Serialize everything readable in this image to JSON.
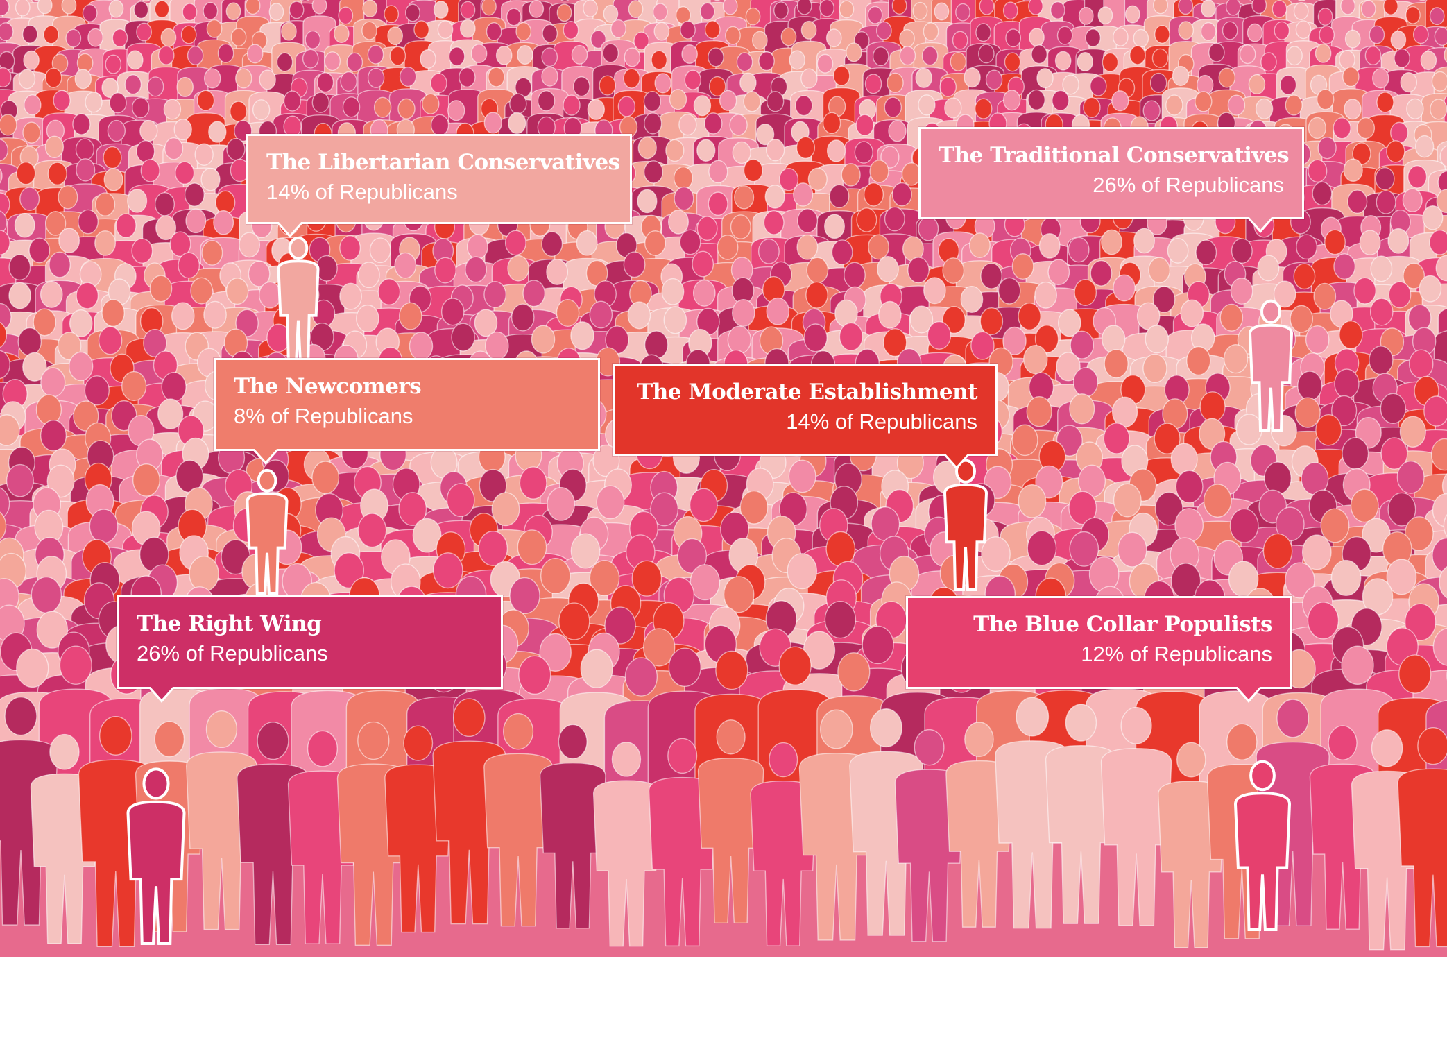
{
  "callouts": [
    {
      "id": "libertarian",
      "title": "The Libertarian Conservatives",
      "share": "14% of Republicans",
      "color": "#f2a7a0",
      "align": "left"
    },
    {
      "id": "traditional",
      "title": "The Traditional Conservatives",
      "share": "26% of Republicans",
      "color": "#ee8aa0",
      "align": "right"
    },
    {
      "id": "newcomers",
      "title": "The Newcomers",
      "share": "8% of Republicans",
      "color": "#ef7d6c",
      "align": "left"
    },
    {
      "id": "moderate",
      "title": "The Moderate Establishment",
      "share": "14% of Republicans",
      "color": "#e2352a",
      "align": "right"
    },
    {
      "id": "rightwing",
      "title": "The Right Wing",
      "share": "26% of Republicans",
      "color": "#cd2f66",
      "align": "left"
    },
    {
      "id": "bluecollar",
      "title": "The Blue Collar Populists",
      "share": "12% of Republicans",
      "color": "#e6406e",
      "align": "right"
    }
  ],
  "palette": [
    "#e8457a",
    "#f28aa6",
    "#c9306a",
    "#f4a79a",
    "#e8382c",
    "#f7b6b8",
    "#d94c85",
    "#ef7a6a",
    "#b52a5e",
    "#f5c2bf"
  ]
}
